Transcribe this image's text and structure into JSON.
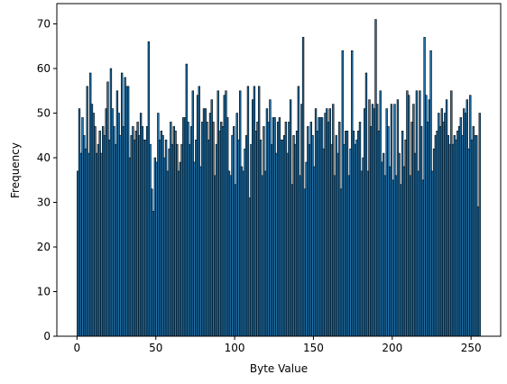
{
  "chart_data": {
    "type": "histogram",
    "xlabel": "Byte Value",
    "ylabel": "Frequency",
    "color": "#1f77b4",
    "edgecolor": "#000000",
    "bins": [
      0,
      1,
      2,
      3,
      4,
      5,
      6,
      7,
      8,
      9,
      10,
      11,
      12,
      13,
      14,
      15,
      16,
      17,
      18,
      19,
      20,
      21,
      22,
      23,
      24,
      25,
      26,
      27,
      28,
      29,
      30,
      31,
      32,
      33,
      34,
      35,
      36,
      37,
      38,
      39,
      40,
      41,
      42,
      43,
      44,
      45,
      46,
      47,
      48,
      49,
      50,
      51,
      52,
      53,
      54,
      55,
      56,
      57,
      58,
      59,
      60,
      61,
      62,
      63,
      64,
      65,
      66,
      67,
      68,
      69,
      70,
      71,
      72,
      73,
      74,
      75,
      76,
      77,
      78,
      79,
      80,
      81,
      82,
      83,
      84,
      85,
      86,
      87,
      88,
      89,
      90,
      91,
      92,
      93,
      94,
      95,
      96,
      97,
      98,
      99,
      100,
      101,
      102,
      103,
      104,
      105,
      106,
      107,
      108,
      109,
      110,
      111,
      112,
      113,
      114,
      115,
      116,
      117,
      118,
      119,
      120,
      121,
      122,
      123,
      124,
      125,
      126,
      127,
      128,
      129,
      130,
      131,
      132,
      133,
      134,
      135,
      136,
      137,
      138,
      139,
      140,
      141,
      142,
      143,
      144,
      145,
      146,
      147,
      148,
      149,
      150,
      151,
      152,
      153,
      154,
      155,
      156,
      157,
      158,
      159,
      160,
      161,
      162,
      163,
      164,
      165,
      166,
      167,
      168,
      169,
      170,
      171,
      172,
      173,
      174,
      175,
      176,
      177,
      178,
      179,
      180,
      181,
      182,
      183,
      184,
      185,
      186,
      187,
      188,
      189,
      190,
      191,
      192,
      193,
      194,
      195,
      196,
      197,
      198,
      199,
      200,
      201,
      202,
      203,
      204,
      205,
      206,
      207,
      208,
      209,
      210,
      211,
      212,
      213,
      214,
      215,
      216,
      217,
      218,
      219,
      220,
      221,
      222,
      223,
      224,
      225,
      226,
      227,
      228,
      229,
      230,
      231,
      232,
      233,
      234,
      235,
      236,
      237,
      238,
      239,
      240,
      241,
      242,
      243,
      244,
      245,
      246,
      247,
      248,
      249,
      250,
      251,
      252,
      253,
      254,
      255,
      256
    ],
    "values": [
      37,
      51,
      41,
      49,
      45,
      42,
      56,
      41,
      59,
      52,
      50,
      47,
      41,
      43,
      46,
      41,
      47,
      45,
      51,
      57,
      44,
      60,
      51,
      47,
      43,
      55,
      50,
      45,
      59,
      47,
      58,
      56,
      56,
      40,
      45,
      47,
      44,
      46,
      48,
      45,
      50,
      47,
      44,
      44,
      47,
      66,
      43,
      33,
      28,
      40,
      39,
      50,
      44,
      46,
      45,
      40,
      44,
      37,
      42,
      48,
      43,
      47,
      46,
      43,
      37,
      39,
      43,
      49,
      49,
      61,
      48,
      43,
      47,
      55,
      39,
      44,
      54,
      56,
      38,
      48,
      51,
      51,
      48,
      44,
      50,
      53,
      48,
      36,
      43,
      55,
      46,
      48,
      47,
      54,
      55,
      49,
      37,
      36,
      45,
      47,
      34,
      50,
      44,
      55,
      38,
      37,
      42,
      45,
      56,
      31,
      43,
      53,
      56,
      46,
      48,
      56,
      44,
      36,
      47,
      37,
      51,
      48,
      53,
      43,
      49,
      49,
      41,
      48,
      49,
      44,
      44,
      45,
      48,
      41,
      48,
      53,
      34,
      45,
      43,
      46,
      56,
      36,
      52,
      67,
      33,
      39,
      47,
      43,
      48,
      45,
      38,
      51,
      46,
      49,
      49,
      49,
      42,
      50,
      51,
      48,
      51,
      43,
      52,
      36,
      45,
      41,
      48,
      33,
      64,
      43,
      46,
      46,
      36,
      42,
      64,
      46,
      43,
      44,
      46,
      48,
      37,
      40,
      51,
      59,
      37,
      53,
      47,
      52,
      51,
      71,
      52,
      46,
      55,
      39,
      41,
      36,
      51,
      47,
      38,
      52,
      35,
      52,
      36,
      53,
      41,
      34,
      46,
      38,
      44,
      55,
      54,
      36,
      48,
      52,
      41,
      55,
      37,
      55,
      47,
      35,
      67,
      54,
      48,
      53,
      64,
      37,
      42,
      45,
      46,
      50,
      47,
      51,
      48,
      50,
      53,
      45,
      43,
      55,
      43,
      45,
      44,
      46,
      47,
      49,
      45,
      51,
      50,
      53,
      42,
      54,
      44,
      47,
      45,
      45,
      29,
      50
    ],
    "xlim": [
      -12.8,
      268.8
    ],
    "ylim": [
      0,
      74.55
    ],
    "xticks": [
      0,
      50,
      100,
      150,
      200,
      250
    ],
    "yticks": [
      0,
      10,
      20,
      30,
      40,
      50,
      60,
      70
    ]
  }
}
